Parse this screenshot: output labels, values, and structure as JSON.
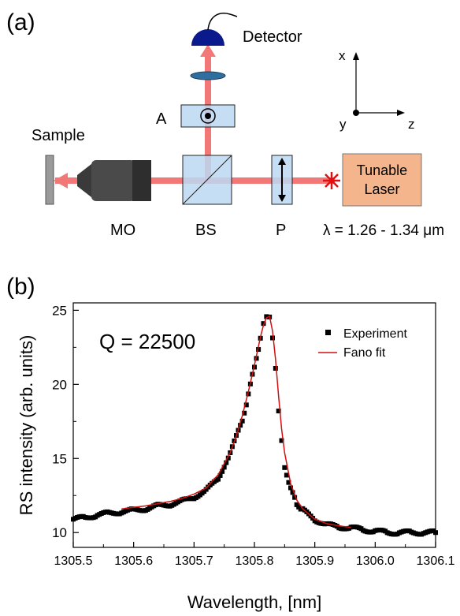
{
  "panel_a": {
    "label": "(a)",
    "labels": {
      "detector": "Detector",
      "sample": "Sample",
      "analyzer": "A",
      "objective": "MO",
      "beamsplitter": "BS",
      "polarizer": "P",
      "laser_line1": "Tunable",
      "laser_line2": "Laser",
      "wavelength": "λ = 1.26 - 1.34 μm"
    },
    "axes": {
      "x": "x",
      "y": "y",
      "z": "z"
    },
    "colors": {
      "beam": "#f27878",
      "laser_box": "#f4b48c",
      "optic_box": "#bcd8f2",
      "detector": "#0a1a8c",
      "lens": "#2f6f9f",
      "objective_body": "#4a4a4a",
      "source_star": "#e01010"
    }
  },
  "panel_b": {
    "label": "(b)",
    "annotation": "Q = 22500"
  },
  "chart_data": {
    "type": "scatter",
    "xlabel": "Wavelength, [nm]",
    "ylabel": "RS intensity (arb. units)",
    "xlim": [
      1305.5,
      1306.1
    ],
    "ylim": [
      9.0,
      25.5
    ],
    "xticks": [
      "1305.5",
      "1305.6",
      "1305.7",
      "1305.8",
      "1305.9",
      "1306.0",
      "1306.1"
    ],
    "yticks": [
      "10",
      "15",
      "20",
      "25"
    ],
    "legend": {
      "placement": "top-right"
    },
    "series": [
      {
        "name": "Experiment",
        "kind": "markers",
        "color": "#000000",
        "x": [
          1305.5,
          1305.52,
          1305.54,
          1305.56,
          1305.58,
          1305.6,
          1305.62,
          1305.64,
          1305.66,
          1305.68,
          1305.7,
          1305.72,
          1305.74,
          1305.76,
          1305.78,
          1305.79,
          1305.8,
          1305.81,
          1305.815,
          1305.82,
          1305.825,
          1305.83,
          1305.835,
          1305.84,
          1305.845,
          1305.85,
          1305.86,
          1305.87,
          1305.88,
          1305.9,
          1305.92,
          1305.94,
          1305.96,
          1305.98,
          1306.0,
          1306.02,
          1306.04,
          1306.06,
          1306.08,
          1306.1
        ],
        "y": [
          10.9,
          11.0,
          11.2,
          11.3,
          11.4,
          11.5,
          11.6,
          11.8,
          11.9,
          12.1,
          12.4,
          12.8,
          13.7,
          15.3,
          17.6,
          19.3,
          21.2,
          23.1,
          24.1,
          24.6,
          24.5,
          23.2,
          21.0,
          18.3,
          16.1,
          14.5,
          12.9,
          12.0,
          11.5,
          10.9,
          10.5,
          10.4,
          10.3,
          10.2,
          10.1,
          10.0,
          10.0,
          10.0,
          10.0,
          10.0
        ]
      },
      {
        "name": "Fano fit",
        "kind": "line",
        "color": "#d01010",
        "x": [
          1305.58,
          1305.6,
          1305.62,
          1305.64,
          1305.66,
          1305.68,
          1305.7,
          1305.72,
          1305.74,
          1305.76,
          1305.77,
          1305.78,
          1305.79,
          1305.8,
          1305.81,
          1305.815,
          1305.82,
          1305.825,
          1305.83,
          1305.835,
          1305.84,
          1305.845,
          1305.85,
          1305.86,
          1305.87,
          1305.88,
          1305.9,
          1305.92,
          1305.94,
          1305.96
        ],
        "y": [
          11.6,
          11.7,
          11.8,
          11.95,
          12.1,
          12.3,
          12.6,
          13.0,
          13.9,
          15.4,
          16.5,
          17.9,
          19.5,
          21.3,
          23.2,
          24.0,
          24.5,
          24.6,
          23.6,
          21.7,
          19.2,
          17.0,
          15.4,
          13.3,
          12.2,
          11.6,
          10.9,
          10.6,
          10.45,
          10.35
        ]
      }
    ]
  }
}
